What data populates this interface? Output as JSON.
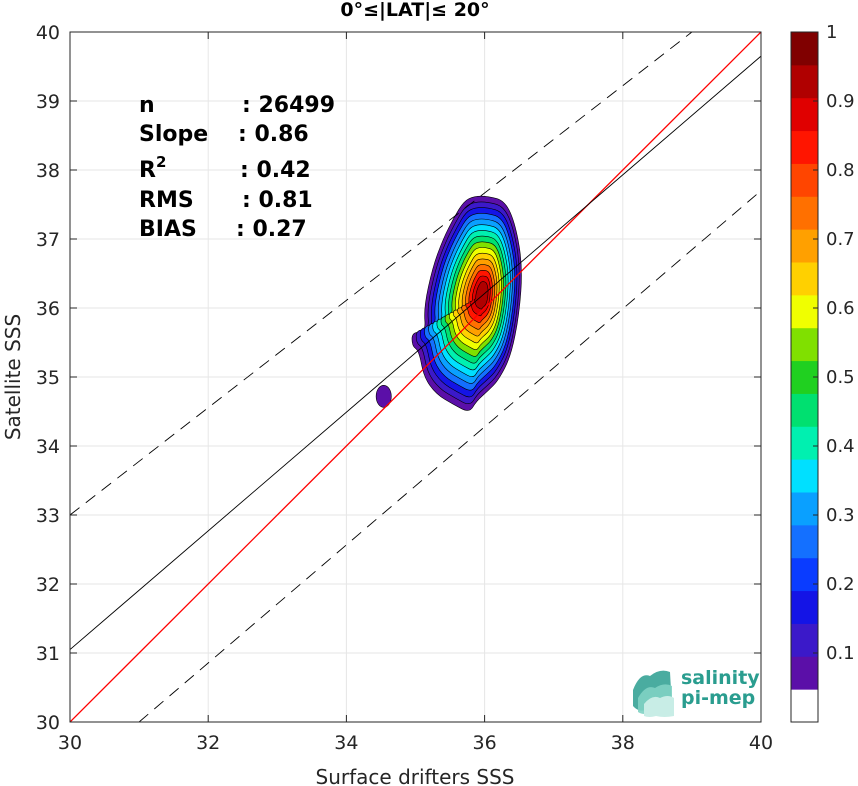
{
  "chart_data": {
    "type": "scatter",
    "title": "0°≤|LAT|≤ 20°",
    "xlabel": "Surface drifters SSS",
    "ylabel": "Satellite SSS",
    "xlim": [
      30,
      40
    ],
    "ylim": [
      30,
      40
    ],
    "xticks": [
      "30",
      "32",
      "34",
      "36",
      "38",
      "40"
    ],
    "yticks": [
      "30",
      "31",
      "32",
      "33",
      "34",
      "35",
      "36",
      "37",
      "38",
      "39",
      "40"
    ],
    "grid": true,
    "stats": [
      {
        "label": "n",
        "value": ": 26499"
      },
      {
        "label": "Slope",
        "value": ": 0.86"
      },
      {
        "label": "R",
        "sup": "2",
        "value": ": 0.42"
      },
      {
        "label": "RMS",
        "value": ": 0.81"
      },
      {
        "label": "BIAS",
        "value": ": 0.27"
      }
    ],
    "lines": {
      "one_to_one": {
        "x": [
          30,
          40
        ],
        "y": [
          30,
          40
        ],
        "color": "#ff0000"
      },
      "regression": {
        "x": [
          30,
          40
        ],
        "y": [
          31.05,
          39.65
        ],
        "color": "#000000"
      },
      "upper_bound": {
        "x": [
          30,
          39
        ],
        "y": [
          33,
          40
        ],
        "color": "#000000",
        "style": "dashed"
      },
      "lower_bound": {
        "x": [
          31,
          40
        ],
        "y": [
          30,
          37.7
        ],
        "color": "#000000",
        "style": "dashed"
      }
    },
    "density_contours": {
      "center": [
        35.98,
        36.2
      ],
      "levels": [
        0.05,
        0.1,
        0.2,
        0.3,
        0.4,
        0.5,
        0.6,
        0.7,
        0.8,
        0.9
      ],
      "outer_shape": [
        [
          35.55,
          37.3
        ],
        [
          35.7,
          37.55
        ],
        [
          35.85,
          37.62
        ],
        [
          36.05,
          37.62
        ],
        [
          36.3,
          37.55
        ],
        [
          36.45,
          37.2
        ],
        [
          36.55,
          36.6
        ],
        [
          36.5,
          35.9
        ],
        [
          36.38,
          35.3
        ],
        [
          36.2,
          34.95
        ],
        [
          36.05,
          34.8
        ],
        [
          35.88,
          34.65
        ],
        [
          35.78,
          34.48
        ],
        [
          35.55,
          34.6
        ],
        [
          35.3,
          34.75
        ],
        [
          35.12,
          35.0
        ],
        [
          35.05,
          35.38
        ],
        [
          34.95,
          35.45
        ],
        [
          34.95,
          35.65
        ],
        [
          35.15,
          35.65
        ],
        [
          35.12,
          36.0
        ],
        [
          35.25,
          36.6
        ],
        [
          35.4,
          37.0
        ]
      ],
      "secondary_blob": {
        "center": [
          34.54,
          34.72
        ],
        "rx": 0.11,
        "ry": 0.16
      }
    },
    "colorbar": {
      "ticks": [
        "0.1",
        "0.2",
        "0.3",
        "0.4",
        "0.5",
        "0.6",
        "0.7",
        "0.8",
        "0.9",
        "1"
      ],
      "min": 0,
      "max": 1,
      "colors": [
        "#ffffff",
        "#5b0fa8",
        "#3b19c9",
        "#1414e6",
        "#0a3cff",
        "#1470ff",
        "#0aa0ff",
        "#00e0ff",
        "#00f0b0",
        "#00e070",
        "#20d020",
        "#80e000",
        "#f0ff00",
        "#ffd000",
        "#ffa000",
        "#ff7000",
        "#ff4500",
        "#ff1500",
        "#e00000",
        "#b00000",
        "#800000"
      ]
    }
  },
  "logo": {
    "line1": "salinity",
    "line2": "pi-mep"
  }
}
